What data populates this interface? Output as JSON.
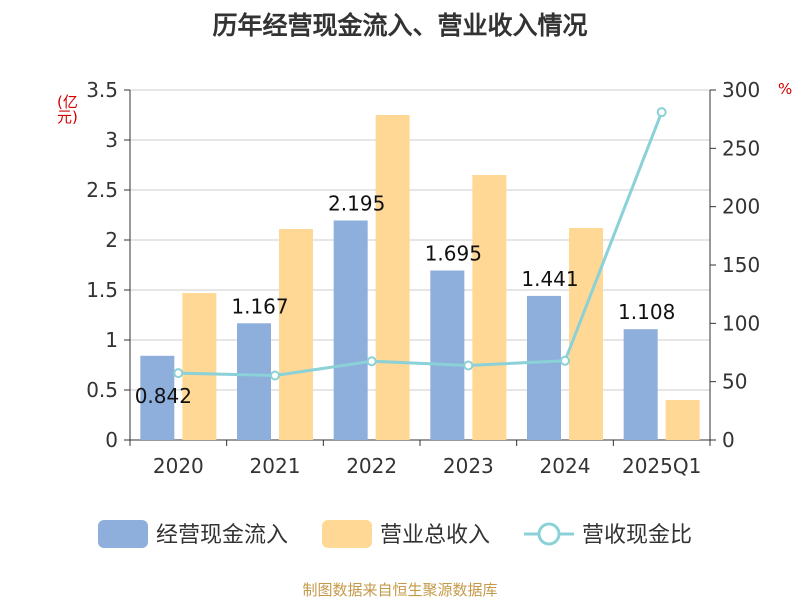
{
  "title": "历年经营现金流入、营业收入情况",
  "footer": "制图数据来自恒生聚源数据库",
  "unit_left": "(亿元)",
  "unit_right": "%",
  "colors": {
    "bar1": "#8eaedb",
    "bar2": "#ffd896",
    "line": "#8ad1d8",
    "axis": "#333333",
    "grid": "#cccccc",
    "unit": "#d40000"
  },
  "chart_data": {
    "type": "bar",
    "title": "历年经营现金流入、营业收入情况",
    "categories": [
      "2020",
      "2021",
      "2022",
      "2023",
      "2024",
      "2025Q1"
    ],
    "series": [
      {
        "name": "经营现金流入",
        "type": "bar",
        "axis": "left",
        "values": [
          0.842,
          1.167,
          2.195,
          1.695,
          1.441,
          1.108
        ]
      },
      {
        "name": "营业总收入",
        "type": "bar",
        "axis": "left",
        "values": [
          1.47,
          2.11,
          3.25,
          2.65,
          2.12,
          0.4
        ]
      },
      {
        "name": "营收现金比",
        "type": "line",
        "axis": "right",
        "values": [
          57.3,
          55.3,
          67.5,
          63.9,
          67.9,
          281
        ]
      }
    ],
    "data_labels": [
      "0.842",
      "1.167",
      "2.195",
      "1.695",
      "1.441",
      "1.108"
    ],
    "y_left": {
      "label": "(亿元)",
      "ylim": [
        0,
        3.5
      ],
      "ticks": [
        "0",
        "0.5",
        "1",
        "1.5",
        "2",
        "2.5",
        "3",
        "3.5"
      ]
    },
    "y_right": {
      "label": "%",
      "ylim": [
        0,
        300
      ],
      "ticks": [
        "0",
        "50",
        "100",
        "150",
        "200",
        "250",
        "300"
      ]
    },
    "grid": true,
    "legend": {
      "position": "bottom",
      "items": [
        "经营现金流入",
        "营业总收入",
        "营收现金比"
      ]
    }
  }
}
